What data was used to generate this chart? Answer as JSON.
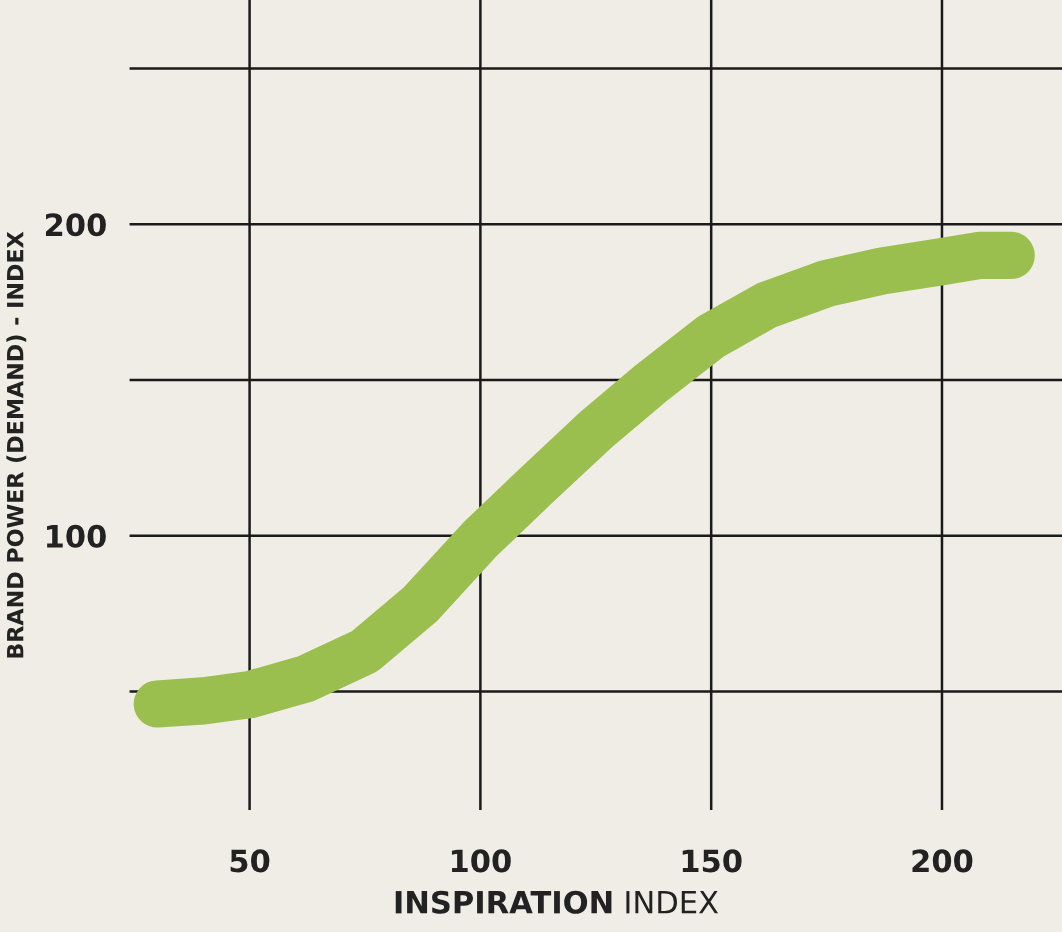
{
  "chart_data": {
    "type": "line",
    "xlabel": "INSPIRATION INDEX",
    "ylabel": "BRAND POWER (DEMAND) - INDEX",
    "x": [
      30,
      40,
      50,
      62,
      75,
      87,
      100,
      112,
      125,
      137,
      150,
      162,
      175,
      187,
      200,
      208,
      215
    ],
    "series": [
      {
        "color": "#9bbf4f",
        "values": [
          46,
          47,
          49,
          54,
          63,
          78,
          99,
          116,
          134,
          149,
          164,
          174,
          181,
          185,
          188,
          190,
          190
        ]
      }
    ],
    "xlim": [
      24,
      226
    ],
    "ylim": [
      12,
      272
    ],
    "xticks": [
      50,
      100,
      150,
      200
    ],
    "yticks": [
      {
        "value": 50,
        "label": null
      },
      100,
      {
        "value": 150,
        "label": null
      },
      200,
      {
        "value": 250,
        "label": null
      }
    ],
    "grid": true,
    "line_style": "solid"
  }
}
